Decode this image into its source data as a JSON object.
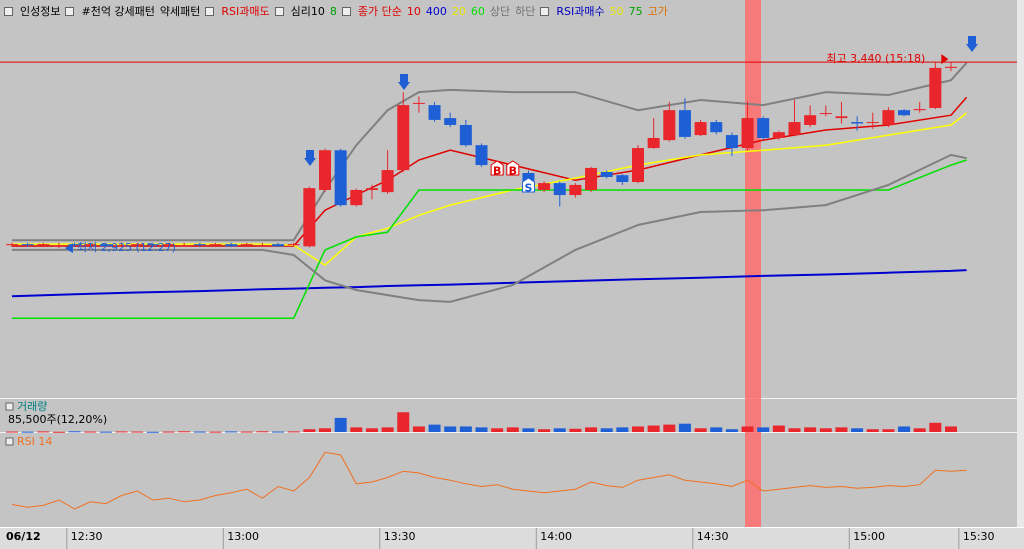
{
  "header": {
    "items": [
      {
        "text": "인성정보",
        "color": "#000000"
      },
      {
        "text": "#천억 강세패턴",
        "color": "#000000"
      },
      {
        "text": "약세패턴",
        "color": "#000000"
      },
      {
        "text": "RSI과매도",
        "color": "#e00000"
      },
      {
        "text": "심리10",
        "color": "#000000"
      },
      {
        "text": "8",
        "color": "#00a000"
      },
      {
        "text": "종가 단순",
        "color": "#e00000"
      },
      {
        "text": "상단",
        "color": "#707070"
      },
      {
        "text": "하단",
        "color": "#707070"
      },
      {
        "text": "RSI과매수",
        "color": "#0000c0"
      },
      {
        "text": "50",
        "color": "#e8e800"
      },
      {
        "text": "75",
        "color": "#00a000"
      },
      {
        "text": "고가",
        "color": "#e07000"
      }
    ]
  },
  "chart_data": [
    {
      "type": "candlestick",
      "categories": [
        "06/12",
        null,
        null,
        null,
        "12:30",
        null,
        null,
        null,
        null,
        null,
        null,
        null,
        null,
        null,
        "13:00",
        null,
        null,
        null,
        null,
        null,
        null,
        null,
        null,
        null,
        "13:30",
        null,
        null,
        null,
        null,
        null,
        null,
        null,
        null,
        null,
        "14:00",
        null,
        null,
        null,
        null,
        null,
        null,
        null,
        null,
        null,
        "14:30",
        null,
        null,
        null,
        null,
        null,
        null,
        null,
        null,
        null,
        "15:00",
        null,
        null,
        null,
        null,
        null,
        null,
        "15:30"
      ],
      "open": [
        2933,
        2936,
        2933,
        2930,
        2936,
        2933,
        2936,
        2930,
        2933,
        2936,
        2933,
        2930,
        2936,
        2933,
        2936,
        2933,
        2930,
        2936,
        2933,
        2930,
        3086,
        3196,
        3044,
        3086,
        3080,
        3141,
        3325,
        3321,
        3285,
        3266,
        3210,
        3140,
        3141,
        3133,
        3086,
        3105,
        3072,
        3086,
        3136,
        3127,
        3108,
        3202,
        3224,
        3307,
        3238,
        3274,
        3238,
        3202,
        3285,
        3230,
        3238,
        3266,
        3299,
        3285,
        3274,
        3274,
        3266,
        3307,
        3307,
        3313,
        3424,
        null
      ],
      "high": [
        2940,
        2940,
        2940,
        2940,
        2940,
        2940,
        2940,
        2940,
        2940,
        2940,
        2940,
        2940,
        2940,
        2940,
        2940,
        2940,
        2940,
        2940,
        2940,
        3095,
        3200,
        3200,
        3090,
        3100,
        3196,
        3357,
        3345,
        3330,
        3300,
        3280,
        3215,
        3155,
        3155,
        3140,
        3110,
        3110,
        3105,
        3150,
        3140,
        3130,
        3210,
        3285,
        3330,
        3340,
        3280,
        3280,
        3245,
        3330,
        3290,
        3250,
        3335,
        3320,
        3320,
        3330,
        3290,
        3300,
        3315,
        3310,
        3330,
        3440,
        3440,
        null
      ],
      "low": [
        2928,
        2928,
        2928,
        2925,
        2928,
        2928,
        2928,
        2928,
        2928,
        2928,
        2928,
        2928,
        2928,
        2928,
        2928,
        2928,
        2928,
        2928,
        2928,
        2927,
        3080,
        3040,
        3040,
        3060,
        3075,
        3135,
        3300,
        3275,
        3260,
        3205,
        3150,
        3135,
        3135,
        3080,
        3080,
        3040,
        3065,
        3080,
        3118,
        3100,
        3105,
        3200,
        3220,
        3228,
        3235,
        3240,
        3180,
        3195,
        3225,
        3225,
        3235,
        3260,
        3290,
        3270,
        3250,
        3255,
        3260,
        3290,
        3300,
        3310,
        3415,
        null
      ],
      "close": [
        2936,
        2933,
        2936,
        2933,
        2933,
        2936,
        2930,
        2933,
        2936,
        2933,
        2936,
        2933,
        2933,
        2936,
        2930,
        2936,
        2933,
        2930,
        2936,
        3091,
        3196,
        3044,
        3086,
        3091,
        3141,
        3321,
        3327,
        3280,
        3266,
        3210,
        3155,
        3150,
        3150,
        3086,
        3105,
        3072,
        3100,
        3147,
        3122,
        3108,
        3202,
        3230,
        3307,
        3233,
        3274,
        3246,
        3202,
        3285,
        3230,
        3246,
        3274,
        3293,
        3299,
        3290,
        3270,
        3274,
        3307,
        3293,
        3310,
        3424,
        3427,
        null
      ],
      "up_color": "#e8262b",
      "down_color": "#1f5fd6",
      "ylim": [
        2510,
        3612
      ],
      "overlays": {
        "x": [
          0,
          4,
          8,
          12,
          16,
          18,
          20,
          22,
          24,
          26,
          28,
          32,
          36,
          40,
          44,
          48,
          52,
          56,
          60,
          61
        ],
        "series": [
          {
            "name": "10",
            "color": "#e00000",
            "values": [
              2931,
              2931,
              2931,
              2931,
              2931,
              2931,
              3030,
              3072,
              3113,
              3169,
              3196,
              3155,
              3113,
              3141,
              3183,
              3224,
              3252,
              3266,
              3293,
              3343
            ]
          },
          {
            "name": "400",
            "color": "#0000d0",
            "values": [
              2792,
              2797,
              2802,
              2806,
              2811,
              2813,
              2815,
              2817,
              2820,
              2822,
              2824,
              2829,
              2834,
              2839,
              2843,
              2848,
              2852,
              2857,
              2862,
              2864
            ]
          },
          {
            "name": "20",
            "color": "#ffff00",
            "values": [
              2936,
              2936,
              2936,
              2936,
              2936,
              2933,
              2878,
              2956,
              2980,
              3016,
              3044,
              3086,
              3119,
              3155,
              3183,
              3196,
              3210,
              3238,
              3266,
              3299
            ]
          },
          {
            "name": "60",
            "color": "#00e000",
            "values": [
              2731,
              2731,
              2731,
              2731,
              2731,
              2731,
              2920,
              2956,
              2969,
              3086,
              3086,
              3086,
              3086,
              3086,
              3086,
              3086,
              3086,
              3086,
              3155,
              3169
            ]
          },
          {
            "name": "상단",
            "color": "#808080",
            "values": [
              2947,
              2947,
              2947,
              2947,
              2947,
              2947,
              3086,
              3210,
              3307,
              3357,
              3363,
              3357,
              3357,
              3307,
              3335,
              3321,
              3357,
              3349,
              3390,
              3438
            ]
          },
          {
            "name": "하단",
            "color": "#808080",
            "values": [
              2920,
              2920,
              2920,
              2920,
              2920,
              2906,
              2836,
              2809,
              2795,
              2781,
              2776,
              2823,
              2920,
              2989,
              3025,
              3030,
              3044,
              3100,
              3183,
              3174
            ]
          }
        ]
      },
      "annotations": {
        "high": {
          "label": "최고 3,440 (15:18)",
          "value": 3440
        },
        "low": {
          "label": "최저 2,925 (12:27)",
          "value": 2925
        }
      },
      "signals": [
        "B",
        "B",
        "S"
      ]
    },
    {
      "type": "bar",
      "title": "거래량",
      "subtitle": "85,500주(12,20%)",
      "values": [
        2000,
        1500,
        2500,
        1000,
        3000,
        2000,
        1500,
        2500,
        2000,
        1000,
        2000,
        3000,
        2000,
        1500,
        2500,
        2000,
        3000,
        2000,
        2500,
        12000,
        16000,
        61000,
        20000,
        16000,
        20000,
        85500,
        24000,
        32000,
        24000,
        24000,
        20000,
        16000,
        20000,
        16000,
        12000,
        16000,
        14000,
        20000,
        16000,
        20000,
        24000,
        28000,
        32000,
        36000,
        16000,
        20000,
        12000,
        24000,
        20000,
        28000,
        16000,
        20000,
        16000,
        20000,
        16000,
        12000,
        12000,
        24000,
        16000,
        40000,
        24000,
        null
      ],
      "ylim": [
        0,
        130000
      ]
    },
    {
      "type": "line",
      "title": "RSI 14",
      "color": "#f07020",
      "values": [
        25,
        22,
        24,
        30,
        20,
        28,
        26,
        35,
        40,
        30,
        32,
        28,
        30,
        35,
        38,
        42,
        32,
        45,
        40,
        55,
        83,
        80,
        48,
        50,
        55,
        62,
        60,
        55,
        52,
        48,
        45,
        47,
        42,
        40,
        38,
        40,
        42,
        50,
        46,
        44,
        52,
        55,
        58,
        52,
        50,
        48,
        45,
        52,
        40,
        42,
        44,
        46,
        44,
        45,
        43,
        44,
        46,
        45,
        47,
        63,
        62,
        63
      ],
      "ylim": [
        0,
        100
      ]
    }
  ]
}
